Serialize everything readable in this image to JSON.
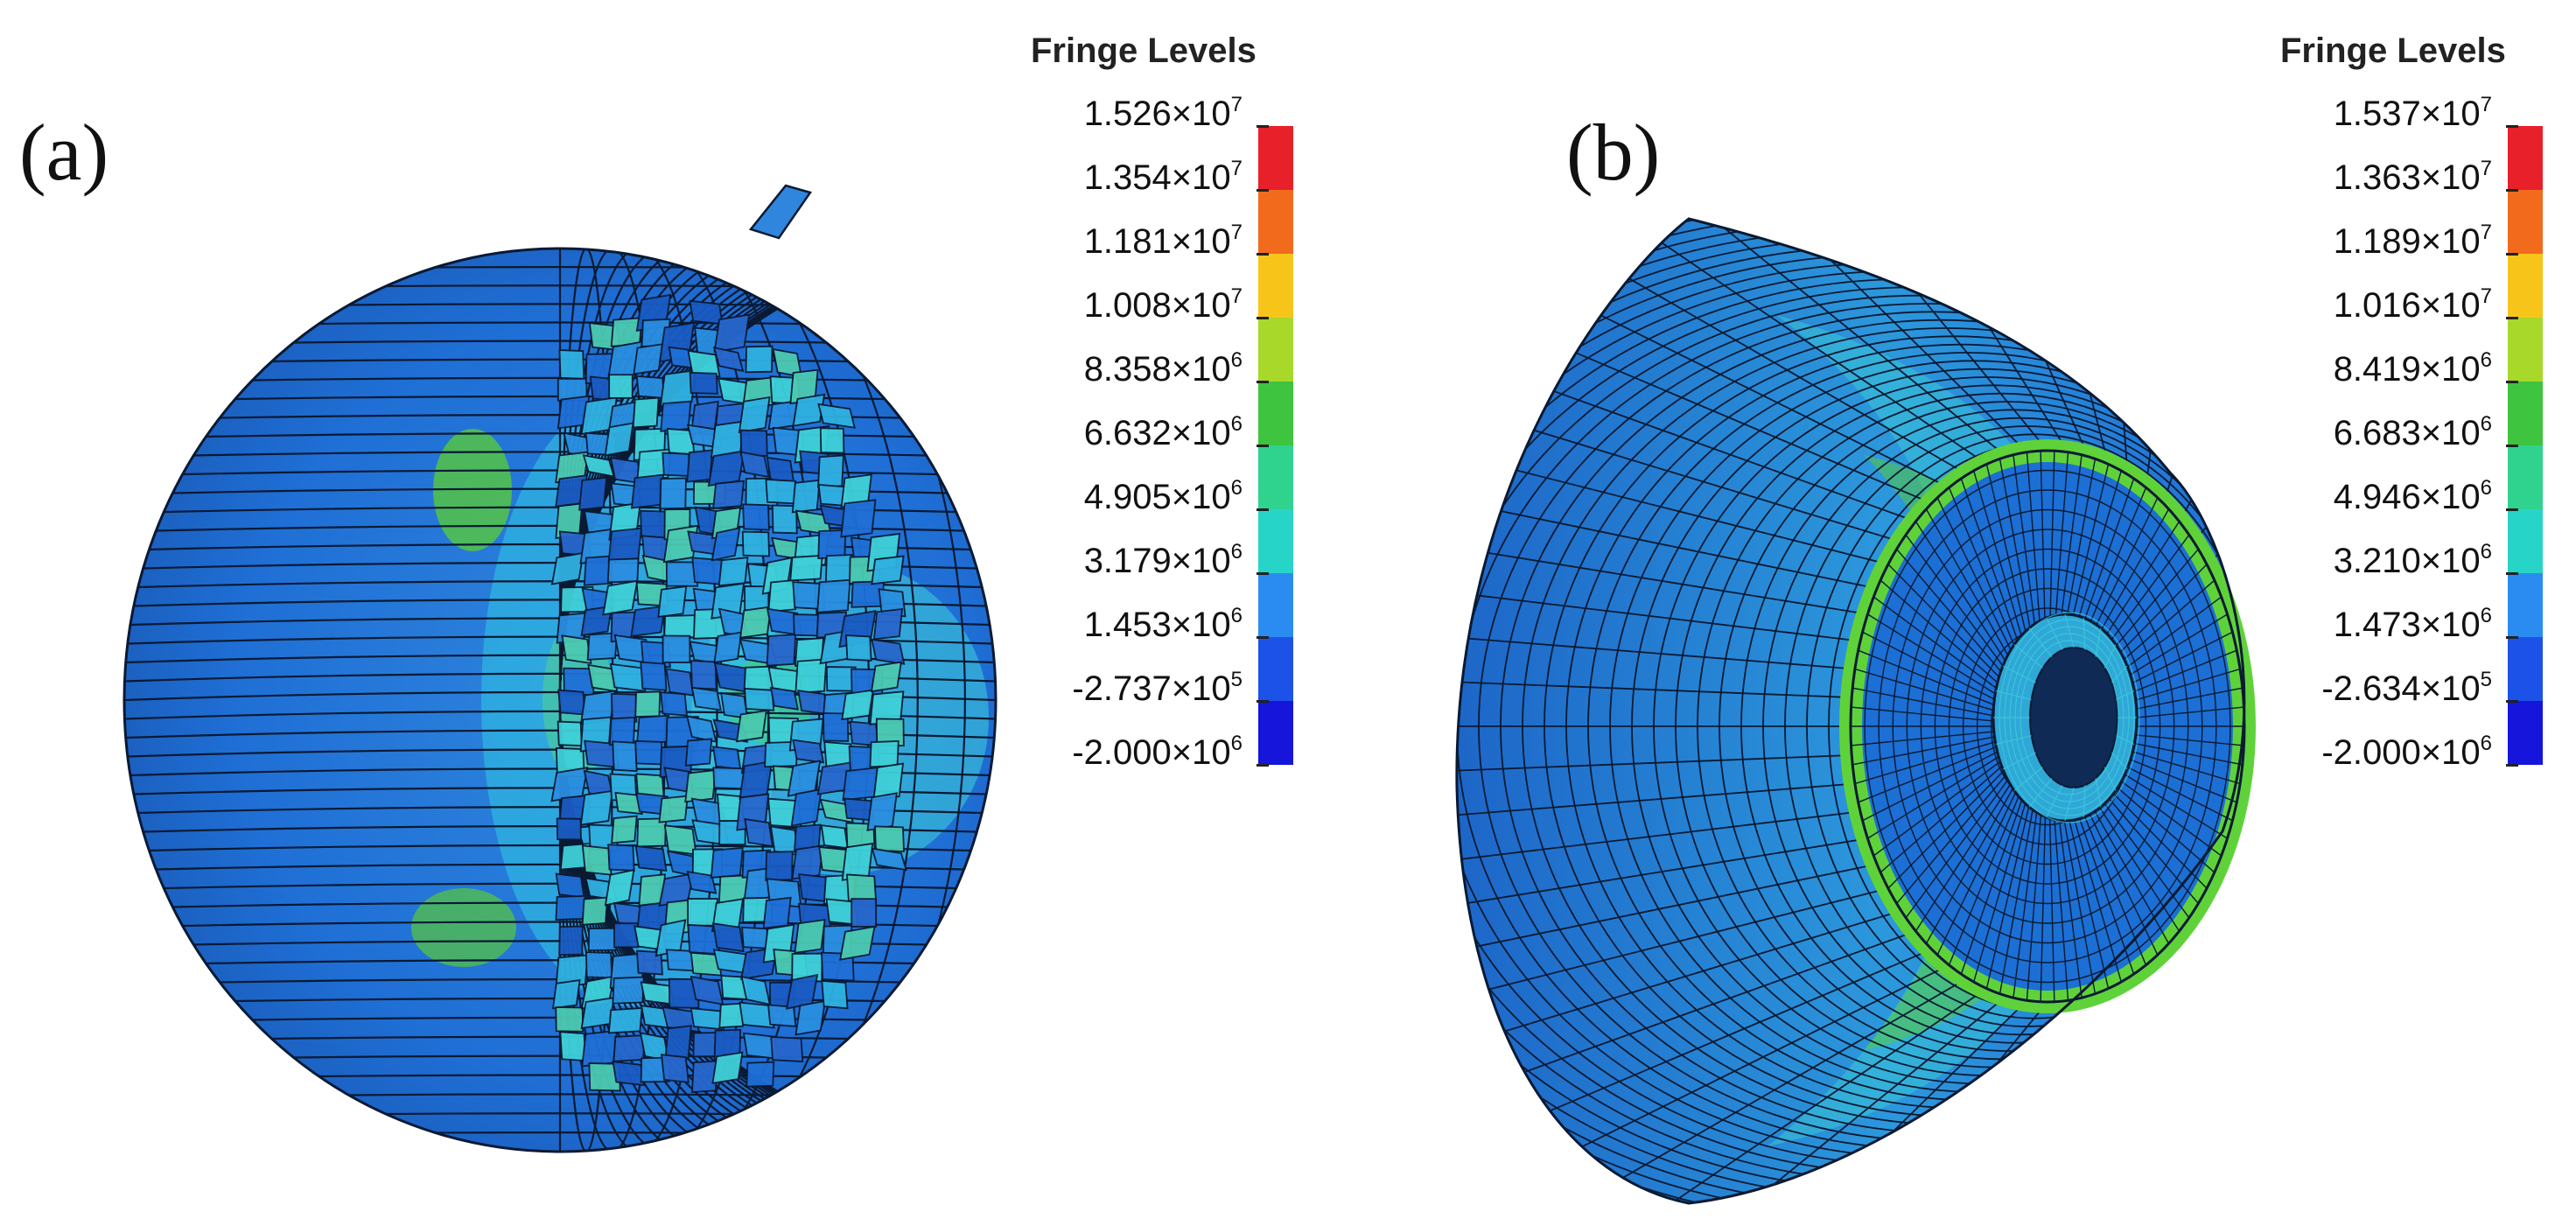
{
  "panels": [
    {
      "label": "(a)",
      "legend": {
        "title": "Fringe Levels",
        "levels": [
          {
            "mantissa": "1.526",
            "exponent": "7"
          },
          {
            "mantissa": "1.354",
            "exponent": "7"
          },
          {
            "mantissa": "1.181",
            "exponent": "7"
          },
          {
            "mantissa": "1.008",
            "exponent": "7"
          },
          {
            "mantissa": "8.358",
            "exponent": "6"
          },
          {
            "mantissa": "6.632",
            "exponent": "6"
          },
          {
            "mantissa": "4.905",
            "exponent": "6"
          },
          {
            "mantissa": "3.179",
            "exponent": "6"
          },
          {
            "mantissa": "1.453",
            "exponent": "6"
          },
          {
            "mantissa": "-2.737",
            "exponent": "5"
          },
          {
            "mantissa": "-2.000",
            "exponent": "6"
          }
        ]
      }
    },
    {
      "label": "(b)",
      "legend": {
        "title": "Fringe Levels",
        "levels": [
          {
            "mantissa": "1.537",
            "exponent": "7"
          },
          {
            "mantissa": "1.363",
            "exponent": "7"
          },
          {
            "mantissa": "1.189",
            "exponent": "7"
          },
          {
            "mantissa": "1.016",
            "exponent": "7"
          },
          {
            "mantissa": "8.419",
            "exponent": "6"
          },
          {
            "mantissa": "6.683",
            "exponent": "6"
          },
          {
            "mantissa": "4.946",
            "exponent": "6"
          },
          {
            "mantissa": "3.210",
            "exponent": "6"
          },
          {
            "mantissa": "1.473",
            "exponent": "6"
          },
          {
            "mantissa": "-2.634",
            "exponent": "5"
          },
          {
            "mantissa": "-2.000",
            "exponent": "6"
          }
        ]
      }
    }
  ],
  "times_sign": "×10",
  "fringe_colors": [
    "#e8202a",
    "#f26b1d",
    "#f7c51a",
    "#a8d82a",
    "#3ec43e",
    "#2fd38e",
    "#27d5c8",
    "#2a8cf0",
    "#1c52e8",
    "#1515dc"
  ],
  "mesh_colors": {
    "base": "#1f6fd6",
    "light": "#30a8e0",
    "cyan": "#3fd0d8",
    "green": "#58c83c",
    "line": "#0a1a33"
  }
}
